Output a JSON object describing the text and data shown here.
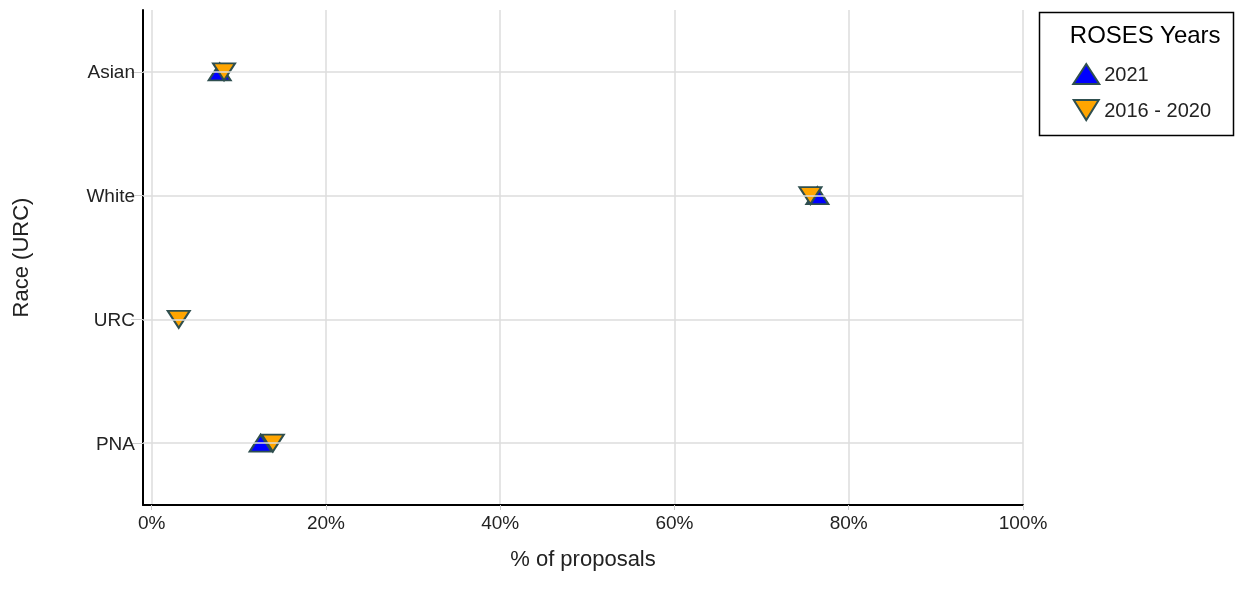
{
  "chart_data": {
    "type": "scatter",
    "xlabel": "% of proposals",
    "ylabel": "Race (URC)",
    "legend_title": "ROSES Years",
    "categories": [
      "Asian",
      "White",
      "URC",
      "PNA"
    ],
    "series": [
      {
        "name": "2021",
        "color": "#0000ff",
        "marker": "triangle",
        "values": [
          7.8,
          76.4,
          null,
          12.5
        ]
      },
      {
        "name": "2016 - 2020",
        "color": "#ffa500",
        "marker": "triangle-down",
        "values": [
          8.3,
          75.6,
          3.1,
          13.9
        ]
      }
    ],
    "xlim": [
      -1,
      100
    ],
    "xticks": [
      {
        "value": 0,
        "label": "0%"
      },
      {
        "value": 20,
        "label": "20%"
      },
      {
        "value": 40,
        "label": "40%"
      },
      {
        "value": 60,
        "label": "60%"
      },
      {
        "value": 80,
        "label": "80%"
      },
      {
        "value": 100,
        "label": "100%"
      }
    ],
    "orientation": "horizontal",
    "grid": true,
    "legend": "top right"
  }
}
